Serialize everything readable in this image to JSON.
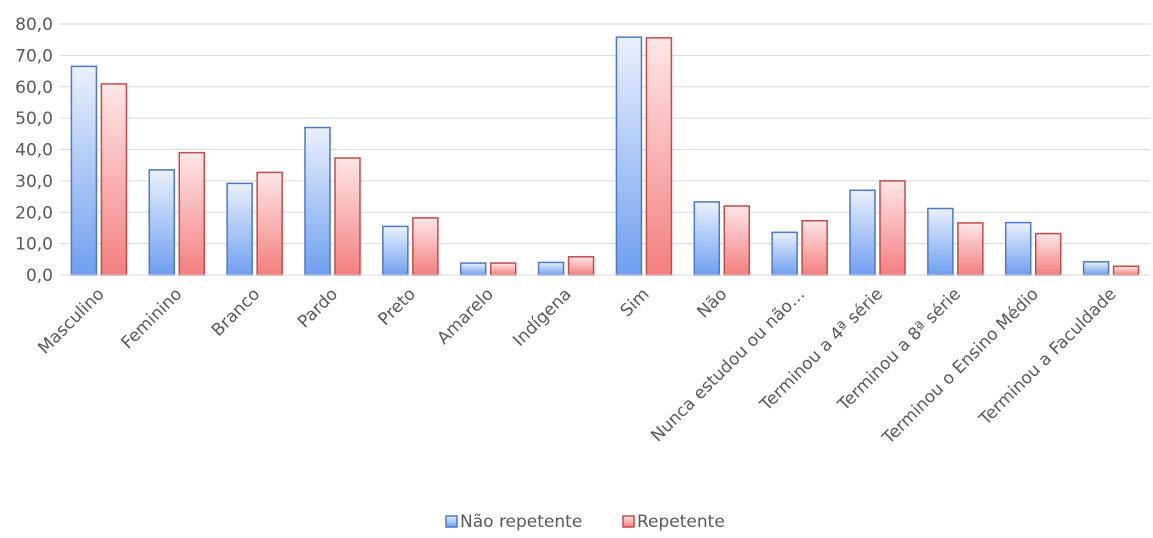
{
  "chart_data": {
    "type": "bar",
    "categories": [
      "Masculino",
      "Feminino",
      "Branco",
      "Pardo",
      "Preto",
      "Amarelo",
      "Indígena",
      "Sim",
      "Não",
      "Nunca estudou ou não…",
      "Terminou a 4ª série",
      "Terminou a 8ª série",
      "Terminou o Ensino Médio",
      "Terminou a Faculdade"
    ],
    "series": [
      {
        "name": "Não repetente",
        "color_top": "#eaf1fb",
        "color_bottom": "#6f9ff0",
        "stroke": "#4a7ac9",
        "values": [
          66.5,
          33.5,
          29.2,
          47.0,
          15.5,
          3.8,
          4.0,
          75.8,
          23.3,
          13.6,
          27.0,
          21.2,
          16.7,
          4.2
        ]
      },
      {
        "name": "Repetente",
        "color_top": "#fde7e7",
        "color_bottom": "#f47f7f",
        "stroke": "#c44b4b",
        "values": [
          60.9,
          39.0,
          32.7,
          37.3,
          18.2,
          3.8,
          5.8,
          75.6,
          22.0,
          17.3,
          30.0,
          16.6,
          13.2,
          2.8
        ]
      }
    ],
    "ylim": [
      0,
      80
    ],
    "yticks": [
      "0,0",
      "10,0",
      "20,0",
      "30,0",
      "40,0",
      "50,0",
      "60,0",
      "70,0",
      "80,0"
    ],
    "grid": true,
    "legend_position": "bottom"
  }
}
